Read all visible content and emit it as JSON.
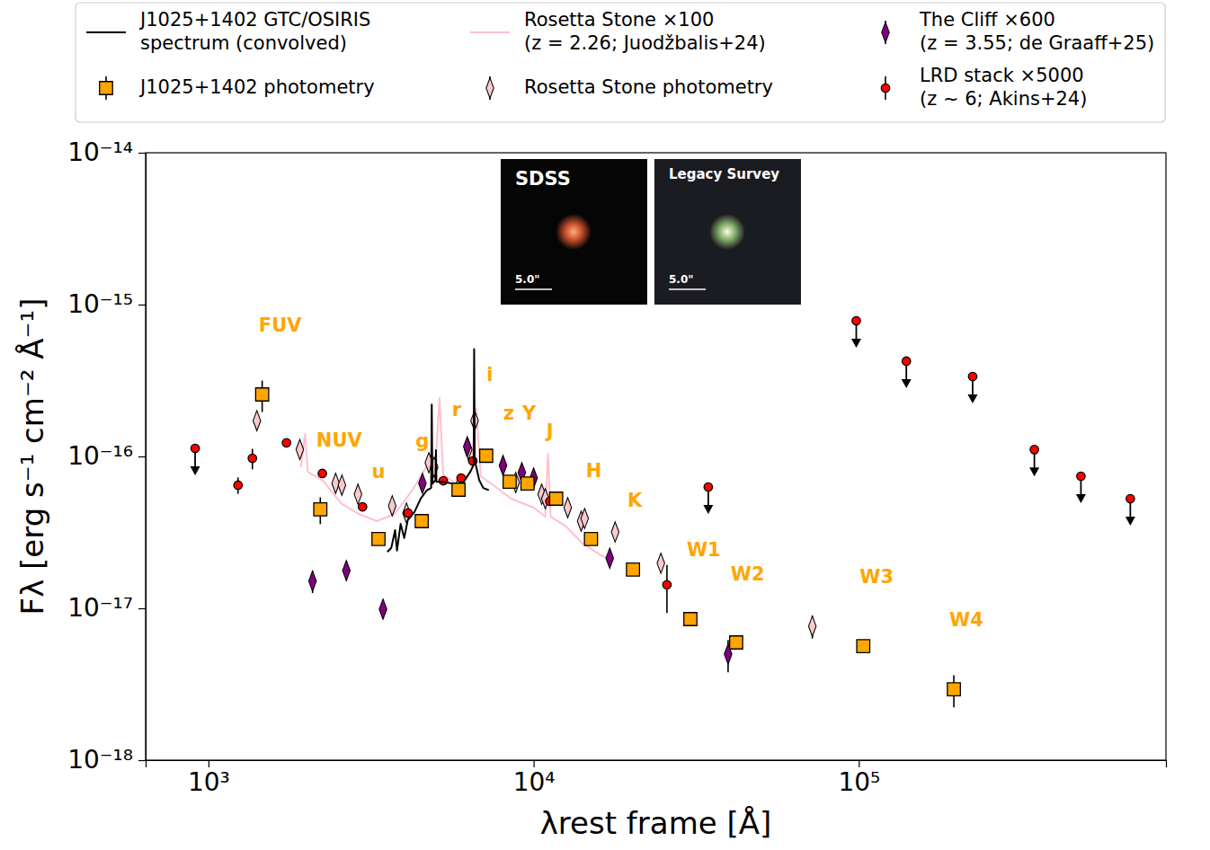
{
  "chart_data": {
    "type": "scatter",
    "x_label": "λrest frame [Å]",
    "y_label": "Fλ [erg s⁻¹ cm⁻² Å⁻¹]",
    "log": true,
    "legend": "top",
    "xlim": [
      641,
      880000
    ],
    "ylim": [
      1e-18,
      1e-14
    ],
    "xticks": [
      {
        "value": 1000,
        "label": "10³"
      },
      {
        "value": 10000,
        "label": "10⁴"
      },
      {
        "value": 100000,
        "label": "10⁵"
      }
    ],
    "yticks": [
      {
        "value": 1e-18,
        "label": "10⁻¹⁸"
      },
      {
        "value": 1e-17,
        "label": "10⁻¹⁷"
      },
      {
        "value": 1e-16,
        "label": "10⁻¹⁶"
      },
      {
        "value": 1e-15,
        "label": "10⁻¹⁵"
      },
      {
        "value": 1e-14,
        "label": "10⁻¹⁴"
      }
    ],
    "series": [
      {
        "name": "J1025+1402 GTC/OSIRIS\nspectrum (convolved)",
        "type": "line",
        "color": "#000000",
        "x": [
          3550,
          3650,
          3750,
          3800,
          3900,
          4000,
          4100,
          4300,
          4500,
          4700,
          4840,
          4861,
          4885,
          4990,
          5007,
          5025,
          5200,
          5500,
          5800,
          6100,
          6400,
          6540,
          6563,
          6590,
          6800,
          7000,
          7280
        ],
        "values": [
          2.35e-17,
          2.5e-17,
          3.27e-17,
          2.4e-17,
          3.6e-17,
          2.9e-17,
          3.8e-17,
          4.3e-17,
          5.3e-17,
          6e-17,
          6.2e-17,
          2.2e-16,
          6.6e-17,
          7e-17,
          1.1e-16,
          6.8e-17,
          6.8e-17,
          6.7e-17,
          6.5e-17,
          6.8e-17,
          8e-17,
          8.8e-17,
          5.1e-16,
          9.5e-17,
          7e-17,
          6.2e-17,
          6e-17
        ]
      },
      {
        "name": "J1025+1402 photometry",
        "type": "scatter",
        "color": "#FFA500",
        "marker": "square",
        "x": [
          1463,
          2208,
          3333,
          4529,
          5876,
          7148,
          8437,
          9574,
          11730,
          15010,
          20210,
          30340,
          41960,
          103200,
          196000
        ],
        "values": [
          2.56e-16,
          4.48e-17,
          2.86e-17,
          3.75e-17,
          6.04e-17,
          1.01e-16,
          6.82e-17,
          6.64e-17,
          5.27e-17,
          2.86e-17,
          1.8e-17,
          8.49e-18,
          5.96e-18,
          5.64e-18,
          2.93e-18
        ],
        "errors": [
          6e-17,
          9e-18,
          null,
          null,
          null,
          null,
          null,
          null,
          null,
          null,
          null,
          null,
          null,
          null,
          7e-19
        ]
      },
      {
        "name": "Rosetta Stone ×100\n(z = 2.26; Juodžbalis+24)",
        "type": "line",
        "color": "#FFC0CB",
        "x": [
          1922,
          1984,
          2020,
          2253,
          2557,
          2902,
          3296,
          3741,
          4247,
          4671,
          4977,
          5136,
          5270,
          5834,
          6417,
          6664,
          6878,
          7516,
          8534,
          10000,
          10860,
          11070,
          11280,
          12490,
          14170,
          16090,
          16930
        ],
        "values": [
          8.49e-17,
          1.41e-16,
          7.93e-17,
          6.92e-17,
          4.92e-17,
          4.18e-17,
          3.75e-17,
          4.18e-17,
          6.04e-17,
          8.49e-17,
          7.93e-17,
          2.43e-16,
          7.62e-17,
          6.47e-17,
          7.93e-17,
          2.06e-16,
          7.41e-17,
          6.47e-17,
          5.27e-17,
          4.6e-17,
          4.01e-17,
          1.04e-16,
          4.01e-17,
          3.5e-17,
          2.67e-17,
          2.24e-17,
          2.12e-17
        ]
      },
      {
        "name": "Rosetta Stone photometry",
        "type": "scatter",
        "color": "#F9C9CC",
        "marker": "diamond",
        "x": [
          1409,
          1910,
          2461,
          2573,
          2883,
          3674,
          4065,
          4762,
          4944,
          5906,
          6293,
          6583,
          8810,
          10590,
          10860,
          12730,
          14000,
          14350,
          17810,
          24620,
          71950
        ],
        "values": [
          1.72e-16,
          1.11e-16,
          6.65e-17,
          6.47e-17,
          5.64e-17,
          4.73e-17,
          4.24e-17,
          9.1e-17,
          8.5e-17,
          6.47e-17,
          1.11e-16,
          1.72e-16,
          6.74e-17,
          5.64e-17,
          5.27e-17,
          4.6e-17,
          3.75e-17,
          3.9e-17,
          3.18e-17,
          1.98e-17,
          7.62e-18
        ],
        "errors": [
          2e-17,
          null,
          null,
          null,
          null,
          null,
          null,
          null,
          null,
          null,
          null,
          null,
          null,
          null,
          null,
          null,
          null,
          null,
          null,
          2.5e-18,
          1.3e-18
        ]
      },
      {
        "name": "The Cliff ×600\n(z = 3.55; de Graaff+25)",
        "type": "scatter",
        "color": "#800080",
        "marker": "diamond",
        "x": [
          2090,
          2655,
          3442,
          4550,
          6250,
          8050,
          9200,
          10000,
          17140,
          39630
        ],
        "values": [
          1.51e-17,
          1.77e-17,
          9.87e-18,
          6.65e-17,
          1.16e-16,
          8.73e-17,
          7.82e-17,
          7.21e-17,
          2.14e-17,
          4.99e-18
        ],
        "errors": [
          2.5e-18,
          2.5e-18,
          null,
          null,
          null,
          null,
          null,
          null,
          null,
          1.2e-18
        ]
      },
      {
        "name": "LRD stack ×5000\n(z ~ 6; Akins+24)",
        "type": "scatter",
        "color": "#FF0000",
        "marker": "circle",
        "x": [
          910,
          1233,
          1365,
          1738,
          2240,
          2978,
          4111,
          5274,
          5985,
          6500,
          11220,
          25700,
          34440,
          98200,
          140000,
          223900,
          346600,
          482000,
          683800
        ],
        "values": [
          1.13e-16,
          6.47e-17,
          9.73e-17,
          1.23e-16,
          7.72e-17,
          4.66e-17,
          4.24e-17,
          6.92e-17,
          7.21e-17,
          9.34e-17,
          5.06e-17,
          1.43e-17,
          6.29e-17,
          7.82e-16,
          4.24e-16,
          3.36e-16,
          1.11e-16,
          7.41e-17,
          5.27e-17
        ],
        "errors": [
          null,
          8e-18,
          1.5e-17,
          null,
          null,
          null,
          null,
          null,
          null,
          null,
          null,
          5e-18,
          null,
          null,
          null,
          null,
          null,
          null,
          null
        ],
        "upper_limits": [
          true,
          false,
          false,
          false,
          false,
          false,
          false,
          false,
          false,
          false,
          false,
          false,
          true,
          true,
          true,
          true,
          true,
          true,
          true
        ]
      }
    ],
    "annotations": [
      {
        "text": "FUV",
        "x": 1662,
        "y": 7.2e-16,
        "color": "#FFA500"
      },
      {
        "text": "NUV",
        "x": 2524,
        "y": 1.26e-16,
        "color": "#FFA500"
      },
      {
        "text": "u",
        "x": 3334,
        "y": 7.8e-17,
        "color": "#FFA500"
      },
      {
        "text": "g",
        "x": 4550,
        "y": 1.24e-16,
        "color": "#FFA500"
      },
      {
        "text": "r",
        "x": 5795,
        "y": 2e-16,
        "color": "#FFA500"
      },
      {
        "text": "i",
        "x": 7330,
        "y": 3.41e-16,
        "color": "#FFA500"
      },
      {
        "text": "z",
        "x": 8380,
        "y": 1.9e-16,
        "color": "#FFA500"
      },
      {
        "text": "Y",
        "x": 9680,
        "y": 1.9e-16,
        "color": "#FFA500"
      },
      {
        "text": "J",
        "x": 11220,
        "y": 1.44e-16,
        "color": "#FFA500"
      },
      {
        "text": "H",
        "x": 15310,
        "y": 7.9e-17,
        "color": "#FFA500"
      },
      {
        "text": "K",
        "x": 20470,
        "y": 5.06e-17,
        "color": "#FFA500"
      },
      {
        "text": "W1",
        "x": 33340,
        "y": 2.39e-17,
        "color": "#FFA500"
      },
      {
        "text": "W2",
        "x": 45500,
        "y": 1.66e-17,
        "color": "#FFA500"
      },
      {
        "text": "W3",
        "x": 113500,
        "y": 1.59e-17,
        "color": "#FFA500"
      },
      {
        "text": "W4",
        "x": 214000,
        "y": 8.26e-18,
        "color": "#FFA500"
      }
    ],
    "insets": [
      {
        "title": "SDSS",
        "scale_label": "5.0\""
      },
      {
        "title": "Legacy Survey",
        "scale_label": "5.0\""
      }
    ]
  }
}
